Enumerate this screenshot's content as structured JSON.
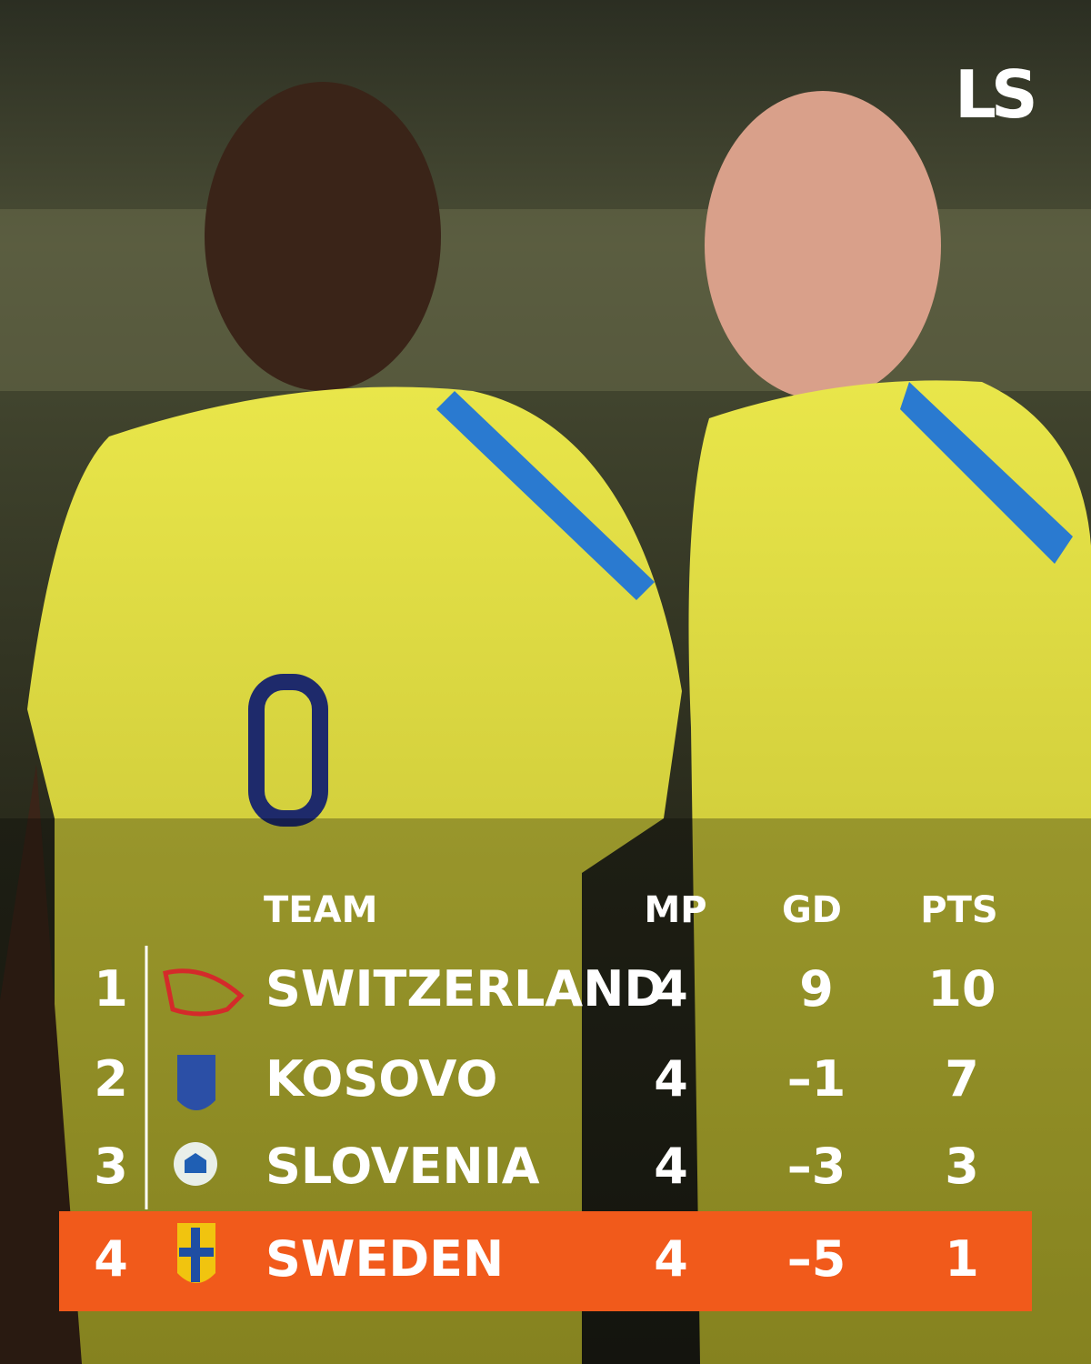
{
  "logo": "LS",
  "table": {
    "header": [
      null,
      "TEAM",
      "MP",
      "GD",
      "PTS"
    ],
    "rows": [
      [
        1,
        "SWITZERLAND",
        4,
        9,
        10
      ],
      [
        2,
        "KOSOVO",
        4,
        "–1",
        7
      ],
      [
        3,
        "SLOVENIA",
        4,
        "–3",
        3
      ],
      [
        4,
        "SWEDEN",
        4,
        "–5",
        1
      ]
    ]
  }
}
